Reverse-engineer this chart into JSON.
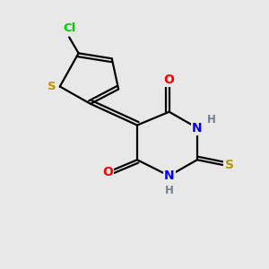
{
  "background_color": "#e8e8e8",
  "bond_color": "#000000",
  "atom_colors": {
    "H": "#708090",
    "N": "#0000ee",
    "O": "#ff0000",
    "S_thio": "#b8960c",
    "S_thioxo": "#b8960c",
    "Cl": "#00cc00"
  },
  "figsize": [
    3.0,
    3.0
  ],
  "dpi": 100
}
